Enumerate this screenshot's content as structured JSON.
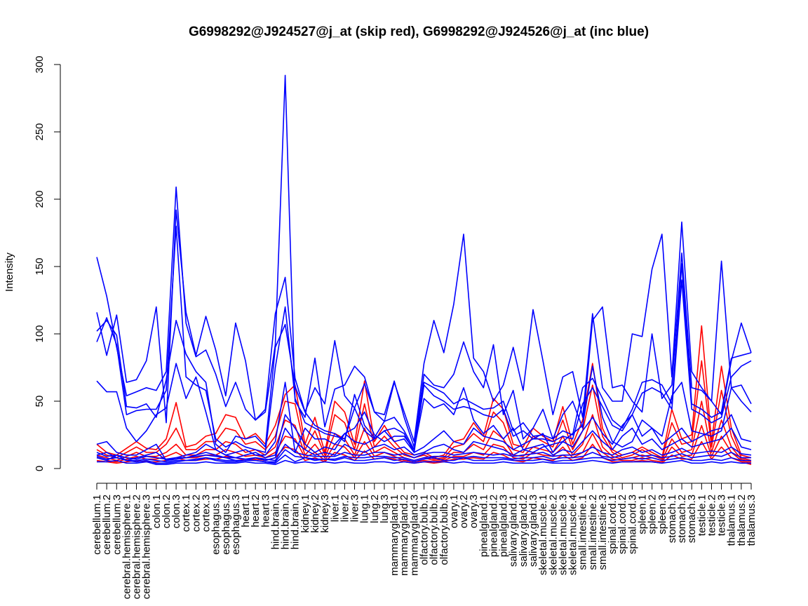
{
  "chart_data": {
    "type": "line",
    "title": "G6998292@J924527@j_at (skip red), G6998292@J924526@j_at (inc blue)",
    "xlabel": "",
    "ylabel": "Intensity",
    "ylim": [
      0,
      300
    ],
    "yticks": [
      0,
      50,
      100,
      150,
      200,
      250,
      300
    ],
    "grid": false,
    "legend": "none",
    "colors": {
      "skip": "#ff0000",
      "inc": "#0000ff",
      "axis": "#000000"
    },
    "categories": [
      "cerebellum.1",
      "cerebellum.2",
      "cerebellum.3",
      "cerebral.hemisphere.1",
      "cerebral.hemisphere.2",
      "cerebral.hemisphere.3",
      "colon.1",
      "colon.2",
      "colon.3",
      "cortex.1",
      "cortex.2",
      "cortex.3",
      "esophagus.1",
      "esophagus.2",
      "esophagus.3",
      "heart.1",
      "heart.2",
      "heart.3",
      "hind.brain.1",
      "hind.brain.2",
      "hind.brain.3",
      "kidney.1",
      "kidney.2",
      "kidney.3",
      "liver.1",
      "liver.2",
      "liver.3",
      "lung.1",
      "lung.2",
      "lung.3",
      "mammarygland.1",
      "mammarygland.2",
      "mammarygland.3",
      "olfactory.bulb.1",
      "olfactory.bulb.2",
      "olfactory.bulb.3",
      "ovary.1",
      "ovary.2",
      "ovary.3",
      "pinealgland.1",
      "pinealgland.2",
      "pinealgland.3",
      "salivary.gland.1",
      "salivary.gland.2",
      "salivary.gland.3",
      "skeletal.muscle.1",
      "skeletal.muscle.2",
      "skeletal.muscle.3",
      "skeletal.muscle.4",
      "small.intestine.1",
      "small.intestine.2",
      "small.intestine.3",
      "spinal.cord.1",
      "spinal.cord.2",
      "spinal.cord.3",
      "spleen.1",
      "spleen.2",
      "spleen.3",
      "stomach.1",
      "stomach.2",
      "stomach.3",
      "testicle.1",
      "testicle.2",
      "testicle.3",
      "thalamus.1",
      "thalamus.2",
      "thalamus.3"
    ],
    "series": [
      {
        "group": "inc",
        "values": [
          157,
          128,
          90,
          54,
          57,
          60,
          58,
          72,
          209,
          108,
          83,
          88,
          70,
          46,
          64,
          44,
          36,
          42,
          92,
          292,
          50,
          38,
          82,
          31,
          59,
          62,
          76,
          68,
          42,
          35,
          64,
          42,
          20,
          78,
          110,
          86,
          122,
          174,
          82,
          72,
          50,
          62,
          90,
          58,
          118,
          80,
          40,
          68,
          72,
          38,
          115,
          60,
          50,
          50,
          100,
          98,
          148,
          174,
          68,
          183,
          72,
          60,
          50,
          154,
          60,
          50,
          42
        ]
      },
      {
        "group": "inc",
        "values": [
          116,
          84,
          114,
          64,
          66,
          80,
          120,
          34,
          192,
          116,
          84,
          113,
          88,
          54,
          108,
          80,
          36,
          44,
          115,
          142,
          67,
          42,
          60,
          48,
          95,
          54,
          45,
          63,
          42,
          40,
          65,
          38,
          16,
          70,
          62,
          60,
          70,
          94,
          72,
          60,
          92,
          40,
          58,
          22,
          30,
          44,
          22,
          40,
          50,
          30,
          110,
          120,
          60,
          62,
          50,
          42,
          100,
          52,
          62,
          160,
          60,
          58,
          50,
          40,
          80,
          108,
          86
        ]
      },
      {
        "group": "inc",
        "values": [
          102,
          110,
          99,
          46,
          45,
          48,
          38,
          66,
          110,
          85,
          72,
          64,
          18,
          12,
          24,
          22,
          24,
          16,
          90,
          107,
          61,
          42,
          32,
          28,
          26,
          20,
          55,
          32,
          23,
          35,
          38,
          28,
          14,
          64,
          60,
          56,
          48,
          52,
          48,
          44,
          45,
          50,
          28,
          34,
          24,
          25,
          22,
          28,
          25,
          60,
          67,
          52,
          36,
          30,
          44,
          64,
          66,
          62,
          48,
          152,
          48,
          44,
          38,
          42,
          82,
          84,
          86
        ]
      },
      {
        "group": "inc",
        "values": [
          94,
          112,
          92,
          40,
          43,
          44,
          44,
          58,
          180,
          68,
          62,
          58,
          22,
          16,
          20,
          16,
          14,
          12,
          75,
          120,
          52,
          34,
          30,
          26,
          24,
          22,
          45,
          28,
          22,
          28,
          30,
          26,
          12,
          62,
          54,
          50,
          44,
          46,
          44,
          40,
          38,
          44,
          24,
          28,
          22,
          22,
          20,
          24,
          22,
          48,
          60,
          46,
          32,
          28,
          40,
          56,
          60,
          56,
          44,
          140,
          44,
          40,
          34,
          38,
          68,
          76,
          80
        ]
      },
      {
        "group": "inc",
        "values": [
          65,
          57,
          57,
          30,
          20,
          28,
          40,
          45,
          78,
          52,
          68,
          42,
          14,
          10,
          12,
          14,
          10,
          10,
          20,
          64,
          12,
          30,
          22,
          22,
          18,
          26,
          30,
          42,
          25,
          20,
          24,
          24,
          14,
          52,
          45,
          48,
          40,
          60,
          36,
          26,
          32,
          22,
          30,
          14,
          12,
          16,
          18,
          20,
          26,
          32,
          76,
          38,
          20,
          16,
          20,
          36,
          30,
          24,
          54,
          64,
          28,
          26,
          24,
          28,
          60,
          62,
          48
        ]
      },
      {
        "group": "inc",
        "values": [
          18,
          20,
          12,
          10,
          10,
          14,
          18,
          6,
          8,
          10,
          12,
          18,
          14,
          10,
          8,
          10,
          12,
          8,
          10,
          40,
          30,
          18,
          12,
          16,
          14,
          26,
          20,
          18,
          22,
          28,
          20,
          22,
          12,
          16,
          22,
          28,
          20,
          18,
          30,
          24,
          22,
          20,
          14,
          18,
          22,
          26,
          12,
          20,
          16,
          28,
          38,
          26,
          18,
          32,
          40,
          24,
          30,
          18,
          24,
          30,
          20,
          24,
          28,
          30,
          40,
          22,
          20
        ]
      },
      {
        "group": "inc",
        "values": [
          10,
          12,
          8,
          6,
          8,
          10,
          12,
          6,
          7,
          8,
          10,
          12,
          10,
          8,
          6,
          6,
          8,
          6,
          8,
          30,
          20,
          14,
          10,
          12,
          10,
          18,
          14,
          12,
          16,
          18,
          14,
          16,
          10,
          12,
          16,
          18,
          14,
          12,
          20,
          18,
          16,
          14,
          10,
          14,
          16,
          18,
          10,
          14,
          12,
          20,
          28,
          20,
          14,
          24,
          30,
          18,
          22,
          14,
          18,
          22,
          16,
          18,
          20,
          22,
          30,
          16,
          14
        ]
      },
      {
        "group": "inc",
        "values": [
          8,
          6,
          10,
          6,
          5,
          6,
          4,
          4,
          5,
          6,
          6,
          8,
          6,
          5,
          5,
          6,
          6,
          5,
          4,
          10,
          5,
          8,
          6,
          7,
          6,
          8,
          6,
          6,
          7,
          8,
          6,
          7,
          5,
          7,
          8,
          6,
          6,
          8,
          6,
          6,
          6,
          7,
          6,
          6,
          6,
          7,
          5,
          6,
          6,
          7,
          8,
          8,
          6,
          7,
          8,
          7,
          8,
          6,
          7,
          8,
          6,
          6,
          7,
          6,
          8,
          6,
          6
        ]
      },
      {
        "group": "inc",
        "values": [
          5,
          5,
          6,
          4,
          4,
          5,
          3,
          3,
          4,
          4,
          4,
          5,
          4,
          4,
          4,
          5,
          4,
          4,
          3,
          6,
          4,
          5,
          4,
          5,
          4,
          5,
          4,
          4,
          5,
          5,
          4,
          5,
          4,
          5,
          5,
          5,
          4,
          5,
          4,
          4,
          4,
          5,
          4,
          4,
          4,
          5,
          4,
          4,
          4,
          5,
          6,
          5,
          4,
          5,
          5,
          5,
          5,
          4,
          5,
          6,
          4,
          4,
          5,
          4,
          5,
          4,
          4
        ]
      },
      {
        "group": "inc",
        "values": [
          12,
          9,
          10,
          8,
          7,
          9,
          8,
          7,
          8,
          8,
          9,
          10,
          9,
          8,
          8,
          7,
          8,
          7,
          6,
          18,
          12,
          10,
          9,
          9,
          9,
          12,
          10,
          10,
          12,
          12,
          10,
          11,
          8,
          11,
          12,
          12,
          10,
          11,
          12,
          11,
          10,
          11,
          9,
          10,
          11,
          12,
          9,
          10,
          10,
          12,
          16,
          12,
          10,
          14,
          16,
          12,
          14,
          10,
          12,
          15,
          11,
          12,
          13,
          12,
          16,
          11,
          10
        ]
      },
      {
        "group": "inc",
        "values": [
          9,
          7,
          8,
          6,
          6,
          7,
          6,
          5,
          6,
          6,
          7,
          8,
          7,
          6,
          6,
          6,
          6,
          5,
          5,
          14,
          9,
          8,
          7,
          7,
          7,
          9,
          8,
          8,
          9,
          9,
          8,
          8,
          6,
          8,
          9,
          9,
          8,
          8,
          9,
          8,
          8,
          8,
          7,
          8,
          8,
          9,
          7,
          8,
          8,
          9,
          12,
          9,
          8,
          10,
          12,
          9,
          10,
          8,
          9,
          11,
          8,
          9,
          10,
          9,
          12,
          8,
          8
        ]
      },
      {
        "group": "skip",
        "values": [
          18,
          12,
          10,
          15,
          20,
          15,
          14,
          22,
          49,
          16,
          18,
          24,
          26,
          40,
          38,
          22,
          26,
          18,
          32,
          55,
          62,
          18,
          38,
          12,
          50,
          42,
          18,
          65,
          20,
          32,
          20,
          12,
          10,
          12,
          8,
          10,
          20,
          22,
          34,
          24,
          52,
          44,
          18,
          16,
          30,
          24,
          20,
          46,
          18,
          36,
          78,
          30,
          14,
          10,
          12,
          16,
          12,
          8,
          44,
          22,
          25,
          106,
          20,
          76,
          30,
          10,
          8
        ]
      },
      {
        "group": "skip",
        "values": [
          14,
          10,
          8,
          12,
          16,
          12,
          12,
          18,
          30,
          14,
          14,
          20,
          20,
          30,
          28,
          18,
          20,
          14,
          24,
          50,
          48,
          14,
          28,
          10,
          40,
          34,
          14,
          48,
          16,
          24,
          16,
          10,
          8,
          10,
          7,
          8,
          16,
          18,
          26,
          20,
          42,
          34,
          14,
          12,
          24,
          20,
          16,
          36,
          14,
          28,
          62,
          24,
          12,
          8,
          10,
          14,
          10,
          7,
          34,
          18,
          20,
          80,
          16,
          58,
          24,
          8,
          6
        ]
      },
      {
        "group": "skip",
        "values": [
          10,
          8,
          6,
          9,
          12,
          9,
          9,
          12,
          18,
          10,
          10,
          14,
          14,
          20,
          18,
          12,
          14,
          10,
          16,
          36,
          32,
          10,
          18,
          8,
          26,
          22,
          10,
          30,
          12,
          16,
          12,
          8,
          6,
          8,
          6,
          7,
          12,
          12,
          18,
          14,
          28,
          22,
          10,
          9,
          16,
          14,
          12,
          24,
          10,
          18,
          40,
          16,
          9,
          7,
          8,
          10,
          8,
          6,
          22,
          12,
          14,
          50,
          12,
          36,
          16,
          7,
          5
        ]
      },
      {
        "group": "skip",
        "values": [
          8,
          6,
          5,
          7,
          9,
          7,
          7,
          9,
          12,
          8,
          8,
          10,
          10,
          14,
          12,
          9,
          10,
          8,
          12,
          24,
          22,
          8,
          12,
          6,
          18,
          16,
          8,
          20,
          9,
          12,
          9,
          6,
          5,
          6,
          5,
          6,
          9,
          9,
          12,
          10,
          18,
          16,
          8,
          7,
          12,
          10,
          9,
          16,
          8,
          12,
          26,
          12,
          7,
          6,
          6,
          8,
          6,
          5,
          16,
          9,
          10,
          32,
          9,
          24,
          12,
          6,
          4
        ]
      },
      {
        "group": "skip",
        "values": [
          6,
          5,
          4,
          5,
          6,
          5,
          5,
          6,
          8,
          6,
          6,
          7,
          7,
          9,
          8,
          6,
          7,
          6,
          8,
          16,
          14,
          6,
          8,
          5,
          12,
          10,
          6,
          13,
          7,
          8,
          7,
          5,
          4,
          5,
          4,
          5,
          7,
          7,
          8,
          7,
          12,
          10,
          6,
          5,
          8,
          7,
          6,
          10,
          6,
          8,
          18,
          8,
          5,
          5,
          5,
          6,
          5,
          4,
          10,
          7,
          7,
          20,
          7,
          16,
          8,
          5,
          3
        ]
      }
    ]
  }
}
